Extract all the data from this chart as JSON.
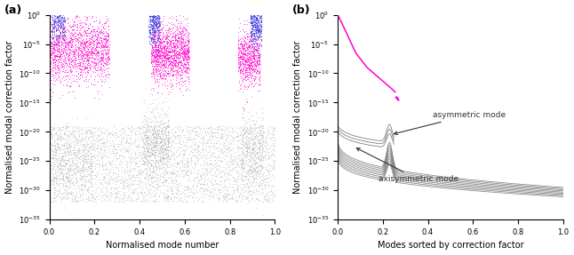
{
  "fig_width": 6.46,
  "fig_height": 2.87,
  "dpi": 100,
  "background_color": "#ffffff",
  "label_a": "(a)",
  "label_b": "(b)",
  "xlabel_a": "Normalised mode number",
  "ylabel_a": "Normalised modal correction factor",
  "xlabel_b": "Modes sorted by correction factor",
  "ylabel_b": "Normalised modal correction factor",
  "ylim_log": [
    -35,
    0
  ],
  "xlim": [
    0,
    1
  ],
  "color_magenta": "#FF00CC",
  "color_blue": "#4444DD",
  "color_gray": "#999999",
  "annotation_asym": "asymmetric mode",
  "annotation_axisym": "axisymmetric mode"
}
